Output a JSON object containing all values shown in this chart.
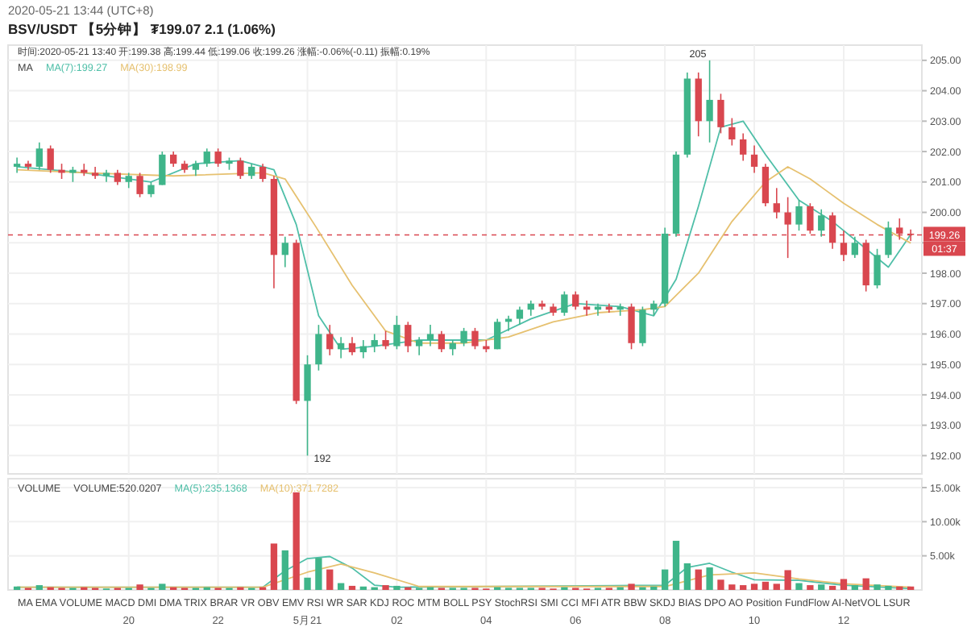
{
  "chart_data": [
    {
      "type": "candlestick",
      "title": "BSV/USDT 【5分钟】 ₮199.07 2.1 (1.06%)",
      "subtitle": "2020-05-21 13:44 (UTC+8)",
      "legend_title": "MA",
      "legend": "top left",
      "grid": true,
      "tick_labels": "y",
      "x": [
        "2020-05-20T17:30",
        "2020-05-20T17:45",
        "2020-05-20T18:00",
        "2020-05-20T18:15",
        "2020-05-20T18:30",
        "2020-05-20T18:45",
        "2020-05-20T19:00",
        "2020-05-20T19:15",
        "2020-05-20T19:30",
        "2020-05-20T19:45",
        "2020-05-20T20:00",
        "2020-05-20T20:15",
        "2020-05-20T20:30",
        "2020-05-20T20:45",
        "2020-05-20T21:00",
        "2020-05-20T21:15",
        "2020-05-20T21:30",
        "2020-05-20T21:45",
        "2020-05-20T22:00",
        "2020-05-20T22:15",
        "2020-05-20T22:30",
        "2020-05-20T22:45",
        "2020-05-20T23:00",
        "2020-05-20T23:15",
        "2020-05-20T23:30",
        "2020-05-20T23:45",
        "2020-05-21T00:00",
        "2020-05-21T00:15",
        "2020-05-21T00:30",
        "2020-05-21T00:45",
        "2020-05-21T01:00",
        "2020-05-21T01:15",
        "2020-05-21T01:30",
        "2020-05-21T01:45",
        "2020-05-21T02:00",
        "2020-05-21T02:15",
        "2020-05-21T02:30",
        "2020-05-21T02:45",
        "2020-05-21T03:00",
        "2020-05-21T03:15",
        "2020-05-21T03:30",
        "2020-05-21T03:45",
        "2020-05-21T04:00",
        "2020-05-21T04:15",
        "2020-05-21T04:30",
        "2020-05-21T04:45",
        "2020-05-21T05:00",
        "2020-05-21T05:15",
        "2020-05-21T05:30",
        "2020-05-21T05:45",
        "2020-05-21T06:00",
        "2020-05-21T06:15",
        "2020-05-21T06:30",
        "2020-05-21T06:45",
        "2020-05-21T07:00",
        "2020-05-21T07:15",
        "2020-05-21T07:30",
        "2020-05-21T07:45",
        "2020-05-21T08:00",
        "2020-05-21T08:15",
        "2020-05-21T08:30",
        "2020-05-21T08:45",
        "2020-05-21T09:00",
        "2020-05-21T09:15",
        "2020-05-21T09:30",
        "2020-05-21T09:45",
        "2020-05-21T10:00",
        "2020-05-21T10:15",
        "2020-05-21T10:30",
        "2020-05-21T10:45",
        "2020-05-21T11:00",
        "2020-05-21T11:15",
        "2020-05-21T11:30",
        "2020-05-21T11:45",
        "2020-05-21T12:00",
        "2020-05-21T12:15",
        "2020-05-21T12:30",
        "2020-05-21T12:45",
        "2020-05-21T13:00",
        "2020-05-21T13:15",
        "2020-05-21T13:30"
      ],
      "ohlc": [
        [
          201.5,
          201.8,
          201.3,
          201.6
        ],
        [
          201.6,
          201.7,
          201.4,
          201.5
        ],
        [
          201.5,
          202.3,
          201.4,
          202.1
        ],
        [
          202.1,
          202.2,
          201.3,
          201.4
        ],
        [
          201.4,
          201.6,
          201.1,
          201.3
        ],
        [
          201.3,
          201.5,
          201.0,
          201.4
        ],
        [
          201.4,
          201.6,
          201.2,
          201.3
        ],
        [
          201.3,
          201.5,
          201.1,
          201.2
        ],
        [
          201.2,
          201.4,
          201.0,
          201.3
        ],
        [
          201.3,
          201.4,
          200.9,
          201.0
        ],
        [
          201.0,
          201.3,
          200.8,
          201.2
        ],
        [
          201.2,
          201.3,
          200.5,
          200.6
        ],
        [
          200.6,
          201.0,
          200.5,
          200.9
        ],
        [
          200.9,
          202.0,
          200.9,
          201.9
        ],
        [
          201.9,
          202.0,
          201.5,
          201.6
        ],
        [
          201.6,
          201.7,
          201.3,
          201.4
        ],
        [
          201.4,
          201.7,
          201.2,
          201.6
        ],
        [
          201.6,
          202.1,
          201.5,
          202.0
        ],
        [
          202.0,
          202.1,
          201.5,
          201.6
        ],
        [
          201.6,
          201.8,
          201.4,
          201.7
        ],
        [
          201.7,
          201.8,
          201.1,
          201.2
        ],
        [
          201.2,
          201.6,
          201.1,
          201.5
        ],
        [
          201.5,
          201.6,
          201.0,
          201.1
        ],
        [
          201.1,
          201.2,
          197.5,
          198.6
        ],
        [
          198.6,
          199.2,
          198.2,
          199.0
        ],
        [
          199.0,
          199.1,
          193.7,
          193.8
        ],
        [
          193.8,
          195.3,
          192.0,
          195.0
        ],
        [
          195.0,
          196.3,
          194.8,
          196.0
        ],
        [
          196.0,
          196.3,
          195.3,
          195.5
        ],
        [
          195.5,
          195.9,
          195.2,
          195.7
        ],
        [
          195.7,
          195.9,
          195.3,
          195.4
        ],
        [
          195.4,
          195.8,
          195.2,
          195.6
        ],
        [
          195.6,
          196.0,
          195.4,
          195.8
        ],
        [
          195.8,
          196.1,
          195.5,
          195.6
        ],
        [
          195.6,
          196.6,
          195.5,
          196.3
        ],
        [
          196.3,
          196.4,
          195.4,
          195.6
        ],
        [
          195.6,
          195.9,
          195.3,
          195.8
        ],
        [
          195.8,
          196.3,
          195.6,
          196.0
        ],
        [
          196.0,
          196.1,
          195.4,
          195.5
        ],
        [
          195.5,
          195.8,
          195.3,
          195.7
        ],
        [
          195.7,
          196.2,
          195.6,
          196.1
        ],
        [
          196.1,
          196.2,
          195.5,
          195.6
        ],
        [
          195.6,
          195.8,
          195.4,
          195.5
        ],
        [
          195.5,
          196.5,
          195.5,
          196.4
        ],
        [
          196.4,
          196.6,
          196.1,
          196.5
        ],
        [
          196.5,
          196.9,
          196.3,
          196.8
        ],
        [
          196.8,
          197.1,
          196.6,
          197.0
        ],
        [
          197.0,
          197.1,
          196.8,
          196.9
        ],
        [
          196.9,
          197.0,
          196.6,
          196.7
        ],
        [
          196.7,
          197.4,
          196.6,
          197.3
        ],
        [
          197.3,
          197.4,
          196.8,
          196.9
        ],
        [
          196.9,
          197.1,
          196.6,
          196.8
        ],
        [
          196.8,
          197.0,
          196.6,
          196.9
        ],
        [
          196.9,
          197.0,
          196.7,
          196.8
        ],
        [
          196.8,
          197.0,
          196.6,
          196.9
        ],
        [
          196.9,
          197.0,
          195.5,
          195.7
        ],
        [
          195.7,
          196.9,
          195.6,
          196.8
        ],
        [
          196.8,
          197.1,
          196.6,
          197.0
        ],
        [
          197.0,
          199.5,
          196.9,
          199.3
        ],
        [
          199.3,
          202.0,
          199.2,
          201.9
        ],
        [
          201.9,
          204.6,
          201.8,
          204.4
        ],
        [
          204.4,
          204.6,
          202.5,
          203.0
        ],
        [
          203.0,
          205.0,
          202.3,
          203.7
        ],
        [
          203.7,
          203.9,
          202.6,
          202.8
        ],
        [
          202.8,
          203.1,
          202.2,
          202.4
        ],
        [
          202.4,
          202.6,
          201.7,
          201.9
        ],
        [
          201.9,
          202.2,
          201.3,
          201.5
        ],
        [
          201.5,
          201.6,
          200.2,
          200.3
        ],
        [
          200.3,
          200.8,
          199.8,
          200.0
        ],
        [
          200.0,
          200.5,
          198.5,
          199.6
        ],
        [
          199.6,
          200.4,
          199.4,
          200.2
        ],
        [
          200.2,
          200.3,
          199.3,
          199.4
        ],
        [
          199.4,
          200.1,
          199.2,
          199.9
        ],
        [
          199.9,
          200.0,
          198.8,
          199.0
        ],
        [
          199.0,
          199.4,
          198.4,
          198.6
        ],
        [
          198.6,
          199.2,
          198.5,
          199.0
        ],
        [
          199.0,
          199.1,
          197.4,
          197.6
        ],
        [
          197.6,
          198.8,
          197.5,
          198.6
        ],
        [
          198.6,
          199.7,
          198.5,
          199.5
        ],
        [
          199.5,
          199.8,
          199.1,
          199.3
        ],
        [
          199.3,
          199.44,
          199.06,
          199.26
        ]
      ],
      "series": [
        {
          "type": "line",
          "name": "MA(7):199.27",
          "color": "#4fbfa8",
          "x": [
            "2020-05-20T17:30",
            "2020-05-20T19:00",
            "2020-05-20T20:30",
            "2020-05-20T21:30",
            "2020-05-20T22:30",
            "2020-05-20T23:15",
            "2020-05-20T23:45",
            "2020-05-21T00:15",
            "2020-05-21T00:45",
            "2020-05-21T01:30",
            "2020-05-21T02:30",
            "2020-05-21T04:00",
            "2020-05-21T05:00",
            "2020-05-21T06:00",
            "2020-05-21T07:00",
            "2020-05-21T07:45",
            "2020-05-21T08:15",
            "2020-05-21T08:45",
            "2020-05-21T09:15",
            "2020-05-21T09:45",
            "2020-05-21T10:15",
            "2020-05-21T11:00",
            "2020-05-21T11:45",
            "2020-05-21T12:30",
            "2020-05-21T13:00",
            "2020-05-21T13:30"
          ],
          "values": [
            201.5,
            201.3,
            201.0,
            201.6,
            201.7,
            201.4,
            199.6,
            196.6,
            195.5,
            195.6,
            195.8,
            195.8,
            196.5,
            197.0,
            196.9,
            196.6,
            197.8,
            200.2,
            202.8,
            203.0,
            201.9,
            200.4,
            199.7,
            198.8,
            198.2,
            199.27
          ]
        },
        {
          "type": "line",
          "name": "MA(30):198.99",
          "color": "#e6c170",
          "x": [
            "2020-05-20T17:30",
            "2020-05-20T19:00",
            "2020-05-20T21:00",
            "2020-05-20T23:00",
            "2020-05-20T23:30",
            "2020-05-21T00:12",
            "2020-05-21T01:00",
            "2020-05-21T01:45",
            "2020-05-21T02:30",
            "2020-05-21T03:30",
            "2020-05-21T04:30",
            "2020-05-21T05:30",
            "2020-05-21T06:30",
            "2020-05-21T07:30",
            "2020-05-21T08:00",
            "2020-05-21T08:45",
            "2020-05-21T09:30",
            "2020-05-21T10:15",
            "2020-05-21T10:45",
            "2020-05-21T11:15",
            "2020-05-21T12:00",
            "2020-05-21T12:45",
            "2020-05-21T13:30"
          ],
          "values": [
            201.4,
            201.3,
            201.2,
            201.3,
            201.1,
            199.5,
            197.6,
            196.1,
            195.7,
            195.7,
            195.9,
            196.4,
            196.7,
            196.8,
            196.9,
            198.0,
            199.7,
            201.0,
            201.5,
            201.1,
            200.3,
            199.6,
            198.99
          ]
        }
      ],
      "xlim": [
        "2020-05-20T17:18",
        "2020-05-21T13:45"
      ],
      "ylim": [
        191.4,
        205.5
      ],
      "xticks": [
        {
          "value": "2020-05-20T20:00",
          "label": null
        },
        {
          "value": "2020-05-20T22:00",
          "label": null
        },
        {
          "value": "2020-05-21T00:00",
          "label": null
        },
        {
          "value": "2020-05-21T02:00",
          "label": null
        },
        {
          "value": "2020-05-21T04:00",
          "label": null
        },
        {
          "value": "2020-05-21T06:00",
          "label": null
        },
        {
          "value": "2020-05-21T08:00",
          "label": null
        },
        {
          "value": "2020-05-21T10:00",
          "label": null
        },
        {
          "value": "2020-05-21T12:00",
          "label": null
        }
      ],
      "yticks": [
        {
          "value": 192,
          "label": "192.00"
        },
        {
          "value": 193,
          "label": "193.00"
        },
        {
          "value": 194,
          "label": "194.00"
        },
        {
          "value": 195,
          "label": "195.00"
        },
        {
          "value": 196,
          "label": "196.00"
        },
        {
          "value": 197,
          "label": "197.00"
        },
        {
          "value": 198,
          "label": "198.00"
        },
        {
          "value": 199,
          "label": null
        },
        {
          "value": 200,
          "label": "200.00"
        },
        {
          "value": 201,
          "label": "201.00"
        },
        {
          "value": 202,
          "label": "202.00"
        },
        {
          "value": 203,
          "label": "203.00"
        },
        {
          "value": 204,
          "label": "204.00"
        },
        {
          "value": 205,
          "label": "205.00"
        }
      ],
      "ref_lines": [
        {
          "axis": "y",
          "value": 199.26,
          "label": "199.26",
          "color": "#d9474f",
          "line_style": "dashed"
        }
      ],
      "annotations": [
        "时间:2020-05-21 13:40  开:199.38  高:199.44  低:199.06  收:199.26  涨幅:-0.06%(-0.11)  振幅:0.19%",
        {
          "text": "205",
          "x": "2020-05-21T09:00",
          "y": 205.0
        },
        {
          "text": "192",
          "x": "2020-05-21T00:00",
          "y": 192.0
        },
        {
          "text": "01:37",
          "y": 199.26
        }
      ]
    },
    {
      "type": "bar",
      "legend_title": "VOLUME",
      "legend": "top left",
      "grid": true,
      "x": [
        "2020-05-20T17:30",
        "2020-05-20T17:45",
        "2020-05-20T18:00",
        "2020-05-20T18:15",
        "2020-05-20T18:30",
        "2020-05-20T18:45",
        "2020-05-20T19:00",
        "2020-05-20T19:15",
        "2020-05-20T19:30",
        "2020-05-20T19:45",
        "2020-05-20T20:00",
        "2020-05-20T20:15",
        "2020-05-20T20:30",
        "2020-05-20T20:45",
        "2020-05-20T21:00",
        "2020-05-20T21:15",
        "2020-05-20T21:30",
        "2020-05-20T21:45",
        "2020-05-20T22:00",
        "2020-05-20T22:15",
        "2020-05-20T22:30",
        "2020-05-20T22:45",
        "2020-05-20T23:00",
        "2020-05-20T23:15",
        "2020-05-20T23:30",
        "2020-05-20T23:45",
        "2020-05-21T00:00",
        "2020-05-21T00:15",
        "2020-05-21T00:30",
        "2020-05-21T00:45",
        "2020-05-21T01:00",
        "2020-05-21T01:15",
        "2020-05-21T01:30",
        "2020-05-21T01:45",
        "2020-05-21T02:00",
        "2020-05-21T02:15",
        "2020-05-21T02:30",
        "2020-05-21T02:45",
        "2020-05-21T03:00",
        "2020-05-21T03:15",
        "2020-05-21T03:30",
        "2020-05-21T03:45",
        "2020-05-21T04:00",
        "2020-05-21T04:15",
        "2020-05-21T04:30",
        "2020-05-21T04:45",
        "2020-05-21T05:00",
        "2020-05-21T05:15",
        "2020-05-21T05:30",
        "2020-05-21T05:45",
        "2020-05-21T06:00",
        "2020-05-21T06:15",
        "2020-05-21T06:30",
        "2020-05-21T06:45",
        "2020-05-21T07:00",
        "2020-05-21T07:15",
        "2020-05-21T07:30",
        "2020-05-21T07:45",
        "2020-05-21T08:00",
        "2020-05-21T08:15",
        "2020-05-21T08:30",
        "2020-05-21T08:45",
        "2020-05-21T09:00",
        "2020-05-21T09:15",
        "2020-05-21T09:30",
        "2020-05-21T09:45",
        "2020-05-21T10:00",
        "2020-05-21T10:15",
        "2020-05-21T10:30",
        "2020-05-21T10:45",
        "2020-05-21T11:00",
        "2020-05-21T11:15",
        "2020-05-21T11:30",
        "2020-05-21T11:45",
        "2020-05-21T12:00",
        "2020-05-21T12:15",
        "2020-05-21T12:30",
        "2020-05-21T12:45",
        "2020-05-21T13:00",
        "2020-05-21T13:15",
        "2020-05-21T13:30"
      ],
      "values": [
        500,
        300,
        700,
        400,
        300,
        300,
        400,
        300,
        200,
        300,
        300,
        800,
        300,
        900,
        400,
        300,
        300,
        400,
        300,
        300,
        400,
        300,
        400,
        6800,
        5800,
        14300,
        1800,
        4700,
        3000,
        1000,
        600,
        500,
        400,
        700,
        600,
        400,
        300,
        400,
        300,
        300,
        300,
        300,
        200,
        400,
        300,
        300,
        300,
        300,
        200,
        400,
        300,
        200,
        300,
        300,
        400,
        900,
        400,
        500,
        3000,
        7200,
        3900,
        3000,
        3300,
        1500,
        800,
        700,
        900,
        1200,
        900,
        2900,
        1000,
        700,
        800,
        600,
        1600,
        700,
        1700,
        800,
        600,
        500,
        500
      ],
      "colors": [
        "#3fb58a",
        "#d9474f",
        "#3fb58a",
        "#d9474f",
        "#d9474f",
        "#3fb58a",
        "#d9474f",
        "#d9474f",
        "#3fb58a",
        "#d9474f",
        "#3fb58a",
        "#d9474f",
        "#3fb58a",
        "#3fb58a",
        "#d9474f",
        "#d9474f",
        "#3fb58a",
        "#3fb58a",
        "#d9474f",
        "#3fb58a",
        "#d9474f",
        "#3fb58a",
        "#d9474f",
        "#d9474f",
        "#3fb58a",
        "#d9474f",
        "#3fb58a",
        "#3fb58a",
        "#d9474f",
        "#3fb58a",
        "#d9474f",
        "#3fb58a",
        "#3fb58a",
        "#d9474f",
        "#3fb58a",
        "#d9474f",
        "#3fb58a",
        "#3fb58a",
        "#d9474f",
        "#3fb58a",
        "#3fb58a",
        "#d9474f",
        "#d9474f",
        "#3fb58a",
        "#3fb58a",
        "#3fb58a",
        "#3fb58a",
        "#d9474f",
        "#d9474f",
        "#3fb58a",
        "#d9474f",
        "#d9474f",
        "#3fb58a",
        "#d9474f",
        "#3fb58a",
        "#d9474f",
        "#3fb58a",
        "#3fb58a",
        "#3fb58a",
        "#3fb58a",
        "#3fb58a",
        "#d9474f",
        "#3fb58a",
        "#d9474f",
        "#d9474f",
        "#d9474f",
        "#d9474f",
        "#d9474f",
        "#d9474f",
        "#d9474f",
        "#3fb58a",
        "#d9474f",
        "#3fb58a",
        "#d9474f",
        "#d9474f",
        "#3fb58a",
        "#d9474f",
        "#3fb58a",
        "#3fb58a",
        "#d9474f",
        "#d9474f"
      ],
      "series": [
        {
          "type": "line",
          "name": "MA(5):235.1368",
          "color": "#4fbfa8",
          "x": [
            "2020-05-20T17:30",
            "2020-05-20T23:00",
            "2020-05-20T23:30",
            "2020-05-21T00:00",
            "2020-05-21T00:30",
            "2020-05-21T01:00",
            "2020-05-21T01:30",
            "2020-05-21T02:00",
            "2020-05-21T08:00",
            "2020-05-21T08:30",
            "2020-05-21T09:00",
            "2020-05-21T09:30",
            "2020-05-21T10:00",
            "2020-05-21T11:00",
            "2020-05-21T12:00",
            "2020-05-21T13:30"
          ],
          "values": [
            400,
            400,
            2800,
            4600,
            4900,
            3200,
            700,
            400,
            700,
            3300,
            3900,
            2600,
            1500,
            1400,
            700,
            200
          ]
        },
        {
          "type": "line",
          "name": "MA(10):371.7282",
          "color": "#e6c170",
          "x": [
            "2020-05-20T17:30",
            "2020-05-20T23:00",
            "2020-05-21T00:00",
            "2020-05-21T00:45",
            "2020-05-21T01:30",
            "2020-05-21T02:30",
            "2020-05-21T08:00",
            "2020-05-21T09:00",
            "2020-05-21T10:00",
            "2020-05-21T11:00",
            "2020-05-21T12:00",
            "2020-05-21T13:30"
          ],
          "values": [
            400,
            400,
            2600,
            3800,
            2500,
            500,
            500,
            2200,
            2500,
            1600,
            900,
            400
          ]
        }
      ],
      "xlim": [
        "2020-05-20T17:18",
        "2020-05-21T13:45"
      ],
      "ylim": [
        0,
        16300
      ],
      "xticks": [
        {
          "value": "2020-05-20T20:00",
          "label": "20"
        },
        {
          "value": "2020-05-20T22:00",
          "label": "22"
        },
        {
          "value": "2020-05-21T00:00",
          "label": "5月21"
        },
        {
          "value": "2020-05-21T02:00",
          "label": "02"
        },
        {
          "value": "2020-05-21T04:00",
          "label": "04"
        },
        {
          "value": "2020-05-21T06:00",
          "label": "06"
        },
        {
          "value": "2020-05-21T08:00",
          "label": "08"
        },
        {
          "value": "2020-05-21T10:00",
          "label": "10"
        },
        {
          "value": "2020-05-21T12:00",
          "label": "12"
        }
      ],
      "yticks": [
        {
          "value": 5000,
          "label": "5.00k"
        },
        {
          "value": 10000,
          "label": "10.00k"
        },
        {
          "value": 15000,
          "label": "15.00k"
        }
      ],
      "annotations": [
        "VOLUME:520.0207",
        "MA  EMA  VOLUME  MACD  DMI  DMA  TRIX  BRAR  VR  OBV  EMV  RSI  WR  SAR  KDJ  ROC  MTM  BOLL  PSY  StochRSI  SMI  CCI  MFI  ATR  BBW  SKDJ  BIAS  DPO  AO  Position  FundFlow  AI-NetVOL  LSUR"
      ]
    }
  ]
}
